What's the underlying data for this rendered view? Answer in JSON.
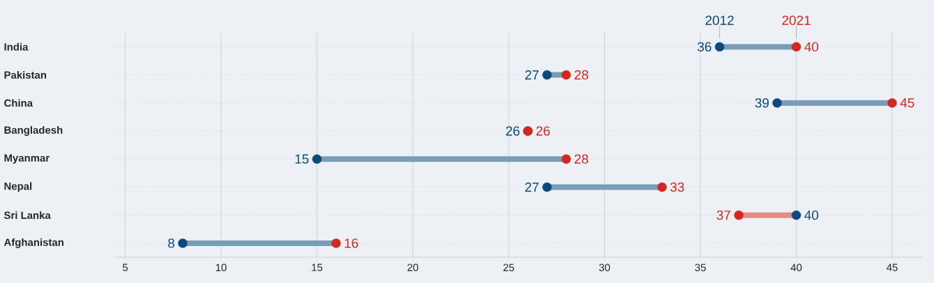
{
  "chart_data": {
    "type": "scatter",
    "orientation": "horizontal",
    "categories": [
      "India",
      "Pakistan",
      "China",
      "Bangladesh",
      "Myanmar",
      "Nepal",
      "Sri Lanka",
      "Afghanistan"
    ],
    "series": [
      {
        "name": "2012",
        "color": "#0b4a7c",
        "values": [
          36,
          27,
          39,
          26,
          15,
          27,
          40,
          8
        ]
      },
      {
        "name": "2021",
        "color": "#d3281f",
        "values": [
          40,
          28,
          45,
          26,
          28,
          33,
          37,
          16
        ]
      }
    ],
    "xlim": [
      4.4,
      46.6
    ],
    "xticks": [
      5,
      10,
      15,
      20,
      25,
      30,
      35,
      40,
      45
    ],
    "grid": true,
    "legend": false,
    "data_labels": true
  }
}
